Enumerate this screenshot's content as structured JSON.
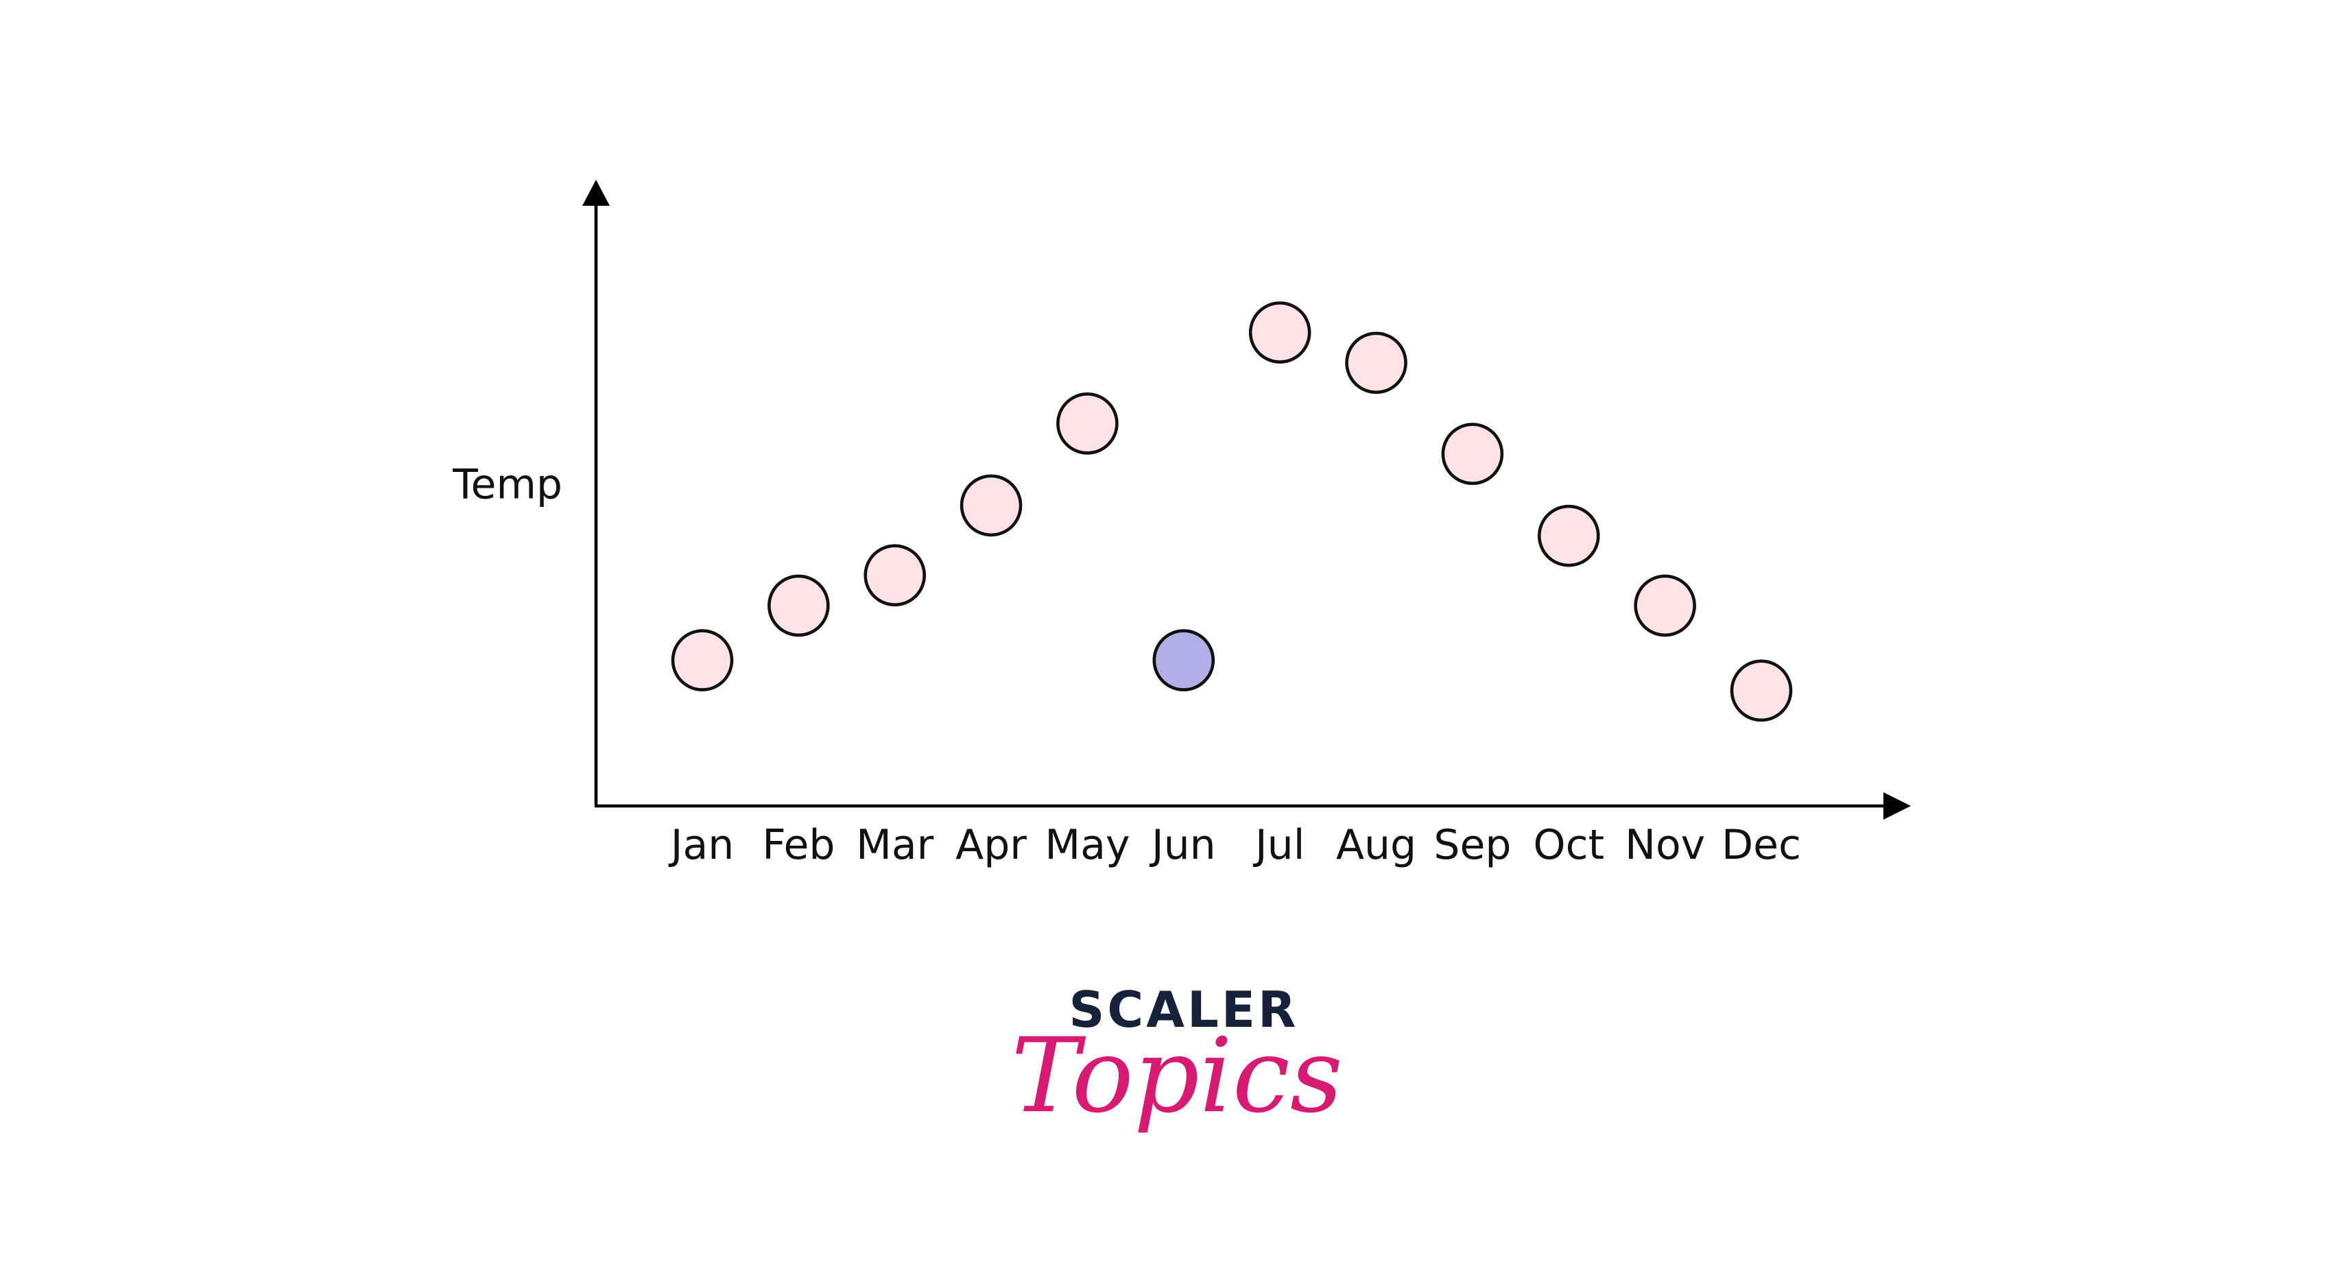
{
  "chart_data": {
    "type": "scatter",
    "ylabel": "Temp",
    "xlabel": "",
    "categories": [
      "Jan",
      "Feb",
      "Mar",
      "Apr",
      "May",
      "Jun",
      "Jul",
      "Aug",
      "Sep",
      "Oct",
      "Nov",
      "Dec"
    ],
    "values": [
      4.8,
      6.6,
      7.6,
      9.9,
      12.6,
      4.8,
      15.6,
      14.6,
      11.6,
      8.9,
      6.6,
      3.8
    ],
    "highlight_index": 5,
    "ylim": [
      0,
      20
    ],
    "grid": false,
    "point_color": "#fde3e8",
    "highlight_color": "#b3aee7"
  },
  "logo": {
    "word": "SCALER",
    "script": "Topics",
    "word_color": "#16213a",
    "script_color": "#d81b72"
  }
}
